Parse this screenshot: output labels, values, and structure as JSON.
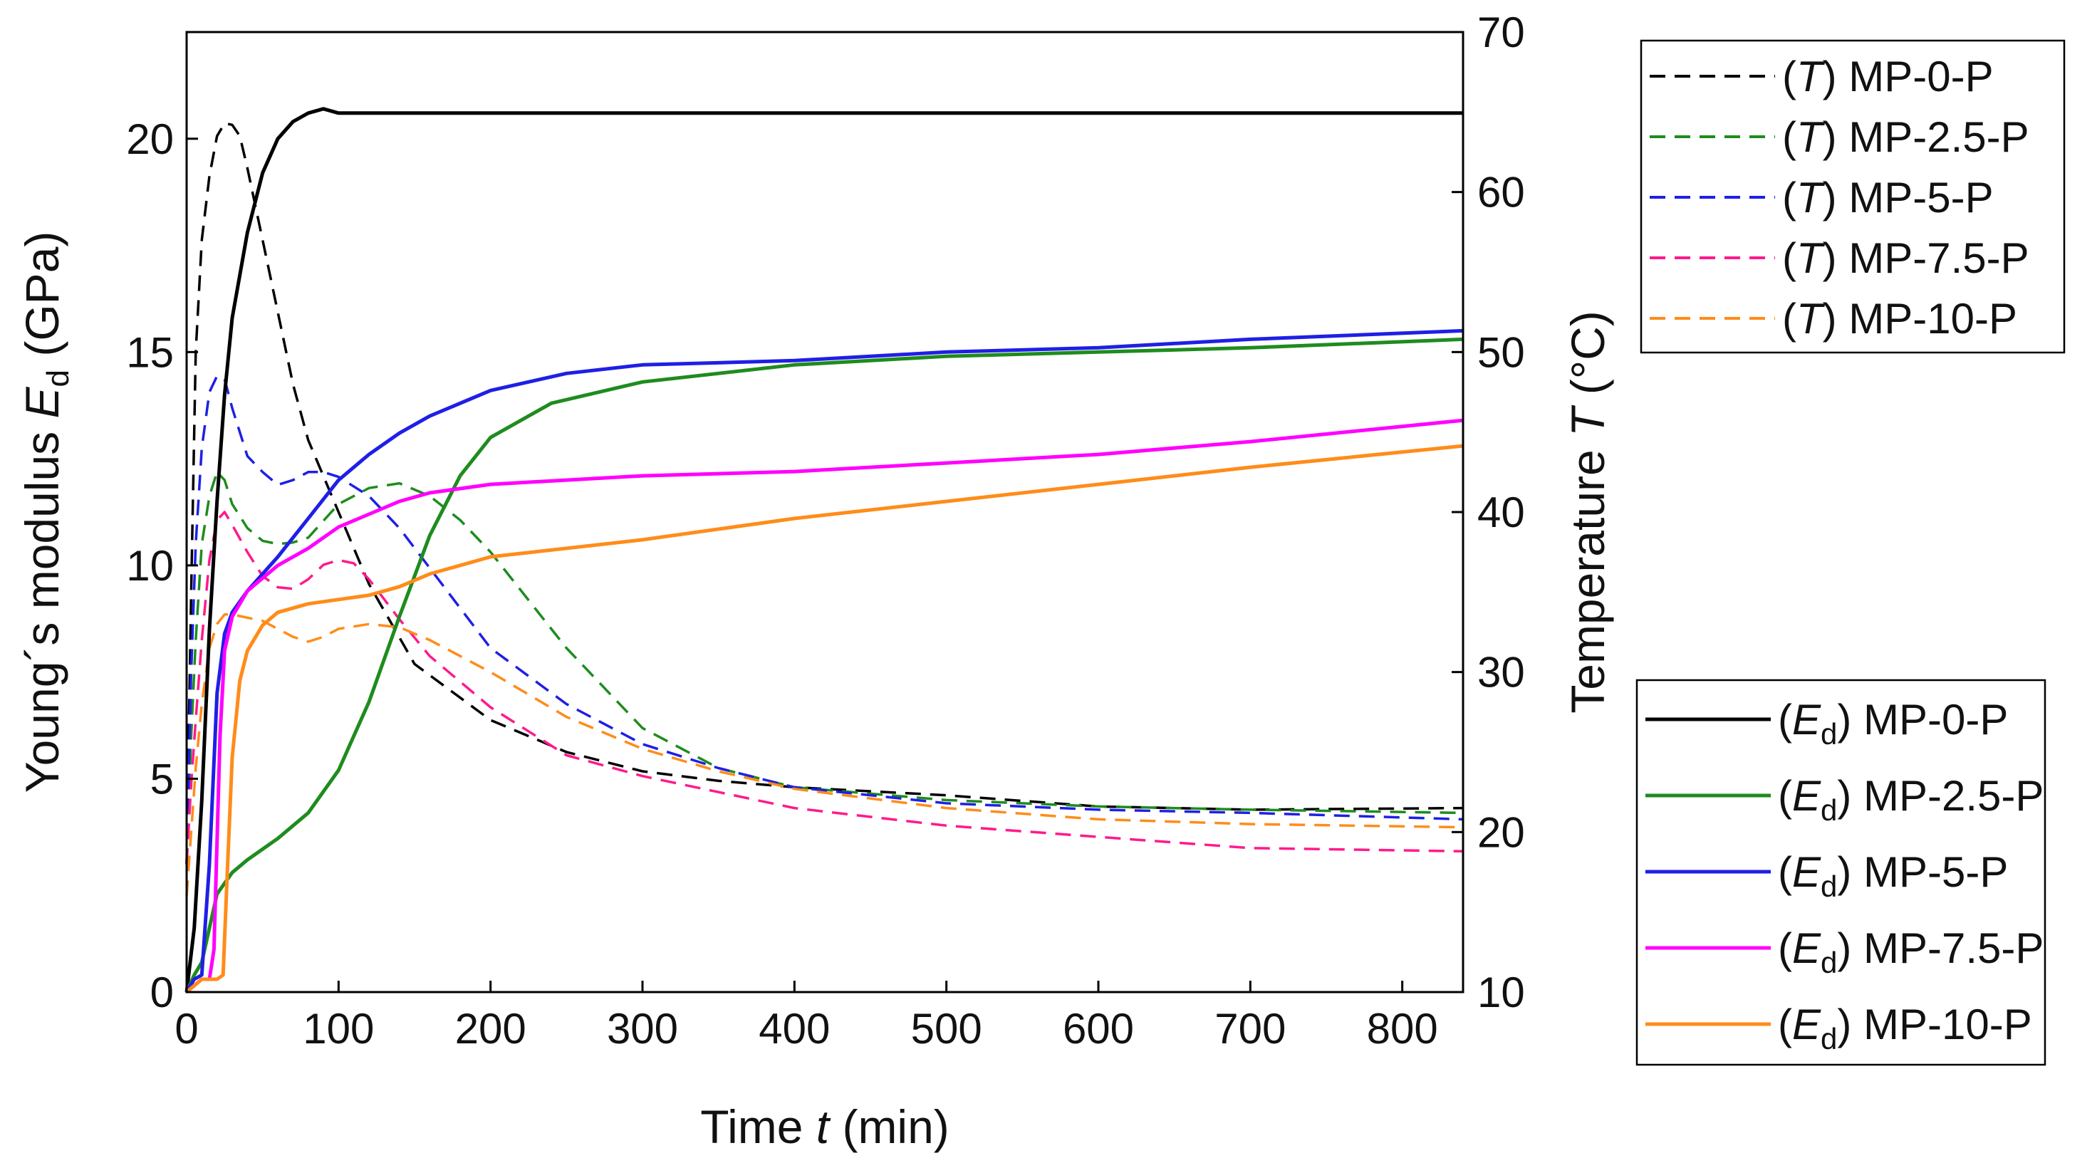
{
  "chart_data": {
    "type": "line",
    "title": "",
    "xlabel": {
      "main": "Time ",
      "var": "t",
      "unit": " (min)"
    },
    "ylabel_left": {
      "main": "Young´s modulus ",
      "var": "E",
      "sub": "d",
      "unit": " (GPa)"
    },
    "ylabel_right": {
      "main": "Temperature ",
      "var": "T",
      "unit": " (°C)"
    },
    "xlim": [
      0,
      840
    ],
    "ylim_left": [
      0,
      22.5
    ],
    "ylim_right": [
      10,
      70
    ],
    "xticks": [
      0,
      100,
      200,
      300,
      400,
      500,
      600,
      700,
      800
    ],
    "yticks_left": [
      0,
      5,
      10,
      15,
      20
    ],
    "yticks_right": [
      10,
      20,
      30,
      40,
      50,
      60,
      70
    ],
    "grid": false,
    "colors": {
      "MP-0-P": "#000000",
      "MP-2.5-P": "#1e8c1e",
      "MP-5-P": "#1f1fe6",
      "MP-7.5-P": "#ff00ff",
      "MP-10-P": "#ff8c1a",
      "MP-7.5-P-T": "#ff1a8c"
    },
    "legend_temperature": {
      "placement": "top-right outside",
      "entries": [
        {
          "prefix": "(",
          "var": "T",
          "suffix": ") MP-0-P",
          "series": "MP-0-P"
        },
        {
          "prefix": "(",
          "var": "T",
          "suffix": ") MP-2.5-P",
          "series": "MP-2.5-P"
        },
        {
          "prefix": "(",
          "var": "T",
          "suffix": ") MP-5-P",
          "series": "MP-5-P"
        },
        {
          "prefix": "(",
          "var": "T",
          "suffix": ") MP-7.5-P",
          "series": "MP-7.5-P"
        },
        {
          "prefix": "(",
          "var": "T",
          "suffix": ") MP-10-P",
          "series": "MP-10-P"
        }
      ]
    },
    "legend_modulus": {
      "placement": "bottom-right outside",
      "entries": [
        {
          "prefix": "(",
          "var": "E",
          "sub": "d",
          "suffix": ") MP-0-P",
          "series": "MP-0-P"
        },
        {
          "prefix": "(",
          "var": "E",
          "sub": "d",
          "suffix": ") MP-2.5-P",
          "series": "MP-2.5-P"
        },
        {
          "prefix": "(",
          "var": "E",
          "sub": "d",
          "suffix": ") MP-5-P",
          "series": "MP-5-P"
        },
        {
          "prefix": "(",
          "var": "E",
          "sub": "d",
          "suffix": ") MP-7.5-P",
          "series": "MP-7.5-P"
        },
        {
          "prefix": "(",
          "var": "E",
          "sub": "d",
          "suffix": ") MP-10-P",
          "series": "MP-10-P"
        }
      ]
    },
    "series_modulus": [
      {
        "name": "MP-0-P",
        "axis": "left",
        "style": "solid",
        "x": [
          0,
          5,
          10,
          15,
          20,
          25,
          30,
          40,
          50,
          60,
          70,
          80,
          90,
          100,
          120,
          200,
          400,
          600,
          840
        ],
        "y": [
          0,
          1.5,
          4.5,
          8.5,
          11.5,
          14,
          15.8,
          17.8,
          19.2,
          20.0,
          20.4,
          20.6,
          20.7,
          20.6,
          20.6,
          20.6,
          20.6,
          20.6,
          20.6
        ]
      },
      {
        "name": "MP-2.5-P",
        "axis": "left",
        "style": "solid",
        "x": [
          0,
          5,
          10,
          15,
          20,
          30,
          40,
          60,
          80,
          100,
          120,
          140,
          160,
          180,
          200,
          240,
          300,
          400,
          500,
          600,
          700,
          840
        ],
        "y": [
          0,
          0.4,
          0.7,
          1.5,
          2.3,
          2.8,
          3.1,
          3.6,
          4.2,
          5.2,
          6.8,
          8.8,
          10.7,
          12.1,
          13.0,
          13.8,
          14.3,
          14.7,
          14.9,
          15.0,
          15.1,
          15.3
        ]
      },
      {
        "name": "MP-5-P",
        "axis": "left",
        "style": "solid",
        "x": [
          0,
          5,
          10,
          15,
          20,
          25,
          30,
          40,
          60,
          80,
          100,
          120,
          140,
          160,
          200,
          250,
          300,
          400,
          500,
          600,
          700,
          840
        ],
        "y": [
          0,
          0.3,
          0.4,
          3.0,
          7.0,
          8.4,
          8.9,
          9.4,
          10.2,
          11.1,
          12.0,
          12.6,
          13.1,
          13.5,
          14.1,
          14.5,
          14.7,
          14.8,
          15.0,
          15.1,
          15.3,
          15.5
        ]
      },
      {
        "name": "MP-7.5-P",
        "axis": "left",
        "style": "solid",
        "x": [
          0,
          10,
          15,
          18,
          22,
          25,
          30,
          40,
          60,
          80,
          100,
          120,
          140,
          160,
          200,
          300,
          400,
          500,
          600,
          700,
          840
        ],
        "y": [
          0,
          0.3,
          0.3,
          1.0,
          6.0,
          8.0,
          8.8,
          9.4,
          10.0,
          10.4,
          10.9,
          11.2,
          11.5,
          11.7,
          11.9,
          12.1,
          12.2,
          12.4,
          12.6,
          12.9,
          13.4
        ]
      },
      {
        "name": "MP-10-P",
        "axis": "left",
        "style": "solid",
        "x": [
          0,
          10,
          20,
          24,
          27,
          30,
          35,
          40,
          50,
          60,
          80,
          100,
          120,
          140,
          160,
          200,
          300,
          400,
          500,
          600,
          700,
          840
        ],
        "y": [
          0,
          0.3,
          0.3,
          0.4,
          3.0,
          5.5,
          7.3,
          8.0,
          8.6,
          8.9,
          9.1,
          9.2,
          9.3,
          9.5,
          9.8,
          10.2,
          10.6,
          11.1,
          11.5,
          11.9,
          12.3,
          12.8
        ]
      }
    ],
    "series_temperature": [
      {
        "name": "MP-0-P",
        "axis": "right",
        "style": "dashed",
        "x": [
          0,
          3,
          6,
          10,
          15,
          20,
          25,
          30,
          35,
          40,
          50,
          60,
          70,
          80,
          100,
          120,
          150,
          200,
          250,
          300,
          350,
          400,
          500,
          600,
          700,
          840
        ],
        "y": [
          18,
          35,
          50,
          57,
          61,
          63.5,
          64.3,
          64.2,
          63.5,
          61.5,
          57,
          52.5,
          48,
          44.5,
          40,
          35.5,
          30.5,
          27,
          25,
          23.8,
          23.2,
          22.8,
          22.3,
          21.6,
          21.4,
          21.5
        ]
      },
      {
        "name": "MP-2.5-P",
        "axis": "right",
        "style": "dashed",
        "x": [
          0,
          3,
          6,
          10,
          15,
          20,
          25,
          30,
          40,
          50,
          60,
          70,
          80,
          100,
          120,
          140,
          160,
          180,
          200,
          250,
          300,
          350,
          400,
          500,
          600,
          700,
          840
        ],
        "y": [
          18,
          26,
          32,
          38,
          41,
          42.5,
          42,
          40.5,
          39,
          38.2,
          38,
          38.1,
          38.4,
          40.5,
          41.5,
          41.8,
          41,
          39.5,
          37.5,
          31.5,
          26.5,
          24,
          22.8,
          22,
          21.6,
          21.4,
          21.2
        ]
      },
      {
        "name": "MP-5-P",
        "axis": "right",
        "style": "dashed",
        "x": [
          0,
          3,
          6,
          10,
          15,
          20,
          25,
          30,
          40,
          50,
          60,
          70,
          80,
          90,
          100,
          120,
          140,
          160,
          200,
          250,
          300,
          350,
          400,
          500,
          600,
          700,
          840
        ],
        "y": [
          18,
          30,
          38,
          44,
          47.5,
          48.5,
          48.3,
          46.5,
          43.5,
          42.5,
          41.7,
          42,
          42.5,
          42.5,
          42.2,
          41,
          39,
          36.5,
          31.5,
          28,
          25.5,
          24,
          22.8,
          21.8,
          21.4,
          21.2,
          20.8
        ]
      },
      {
        "name": "MP-7.5-P",
        "axis": "right",
        "style": "dashed",
        "x": [
          0,
          3,
          6,
          10,
          15,
          20,
          25,
          30,
          40,
          50,
          60,
          70,
          80,
          90,
          100,
          110,
          120,
          140,
          160,
          200,
          250,
          300,
          350,
          400,
          500,
          600,
          700,
          840
        ],
        "y": [
          18,
          23,
          27,
          32,
          37,
          39.5,
          40,
          39.2,
          37.5,
          36,
          35.3,
          35.2,
          35.8,
          36.7,
          37,
          36.8,
          35.8,
          33.3,
          31,
          27.8,
          24.8,
          23.5,
          22.5,
          21.5,
          20.4,
          19.7,
          19,
          18.8
        ]
      },
      {
        "name": "MP-10-P",
        "axis": "right",
        "style": "dashed",
        "x": [
          0,
          3,
          6,
          10,
          15,
          20,
          25,
          30,
          40,
          50,
          60,
          70,
          80,
          90,
          100,
          120,
          140,
          160,
          200,
          250,
          300,
          350,
          400,
          500,
          600,
          700,
          840
        ],
        "y": [
          16,
          20,
          24,
          28,
          31.5,
          33,
          33.6,
          33.6,
          33.4,
          33.2,
          32.7,
          32.2,
          31.9,
          32.2,
          32.7,
          33,
          32.8,
          32,
          30,
          27.2,
          25.2,
          23.8,
          22.7,
          21.5,
          20.8,
          20.5,
          20.3
        ]
      }
    ]
  }
}
